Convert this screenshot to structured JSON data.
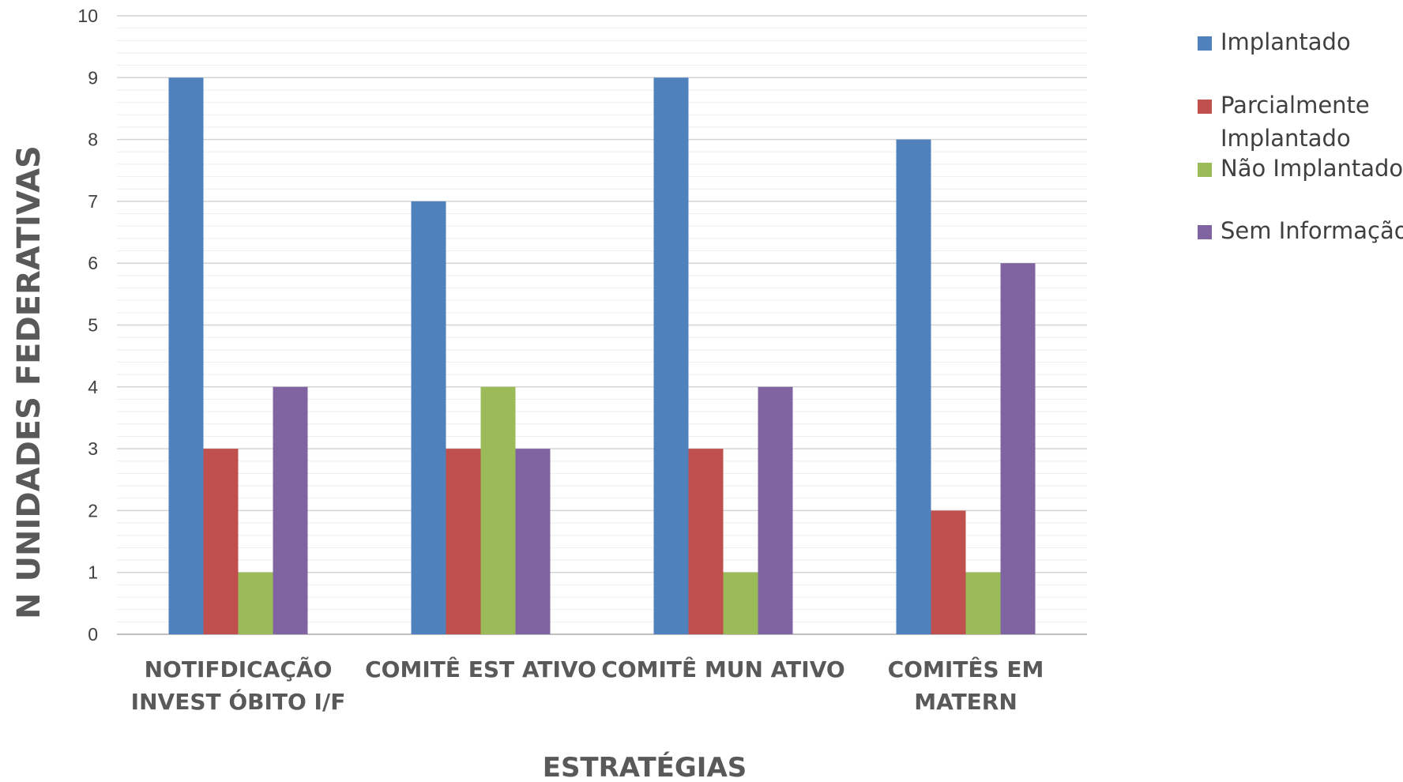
{
  "chart_data": {
    "type": "bar",
    "categories": [
      [
        "NOTIFDICAÇÃO",
        "INVEST ÓBITO I/F"
      ],
      [
        "COMITÊ EST ATIVO"
      ],
      [
        "COMITÊ MUN ATIVO"
      ],
      [
        "COMITÊS EM",
        "MATERN"
      ]
    ],
    "series": [
      {
        "name": "Implantado",
        "legend_lines": [
          "Implantado"
        ],
        "color": "#4F81BD",
        "values": [
          9,
          7,
          9,
          8
        ]
      },
      {
        "name": "Parcialmente Implantado",
        "legend_lines": [
          "Parcialmente",
          "Implantado"
        ],
        "color": "#C0504D",
        "values": [
          3,
          3,
          3,
          2
        ]
      },
      {
        "name": "Não Implantado",
        "legend_lines": [
          "Não Implantado"
        ],
        "color": "#9BBB59",
        "values": [
          1,
          4,
          1,
          1
        ]
      },
      {
        "name": "Sem Informação",
        "legend_lines": [
          "Sem Informação"
        ],
        "color": "#8064A2",
        "values": [
          4,
          3,
          4,
          6
        ]
      }
    ],
    "title": "",
    "xlabel": "ESTRATÉGIAS",
    "ylabel": "N  UNIDADES FEDERATIVAS",
    "ylim": [
      0,
      10
    ],
    "y_ticks": [
      0,
      1,
      2,
      3,
      4,
      5,
      6,
      7,
      8,
      9,
      10
    ],
    "y_minor_step": 0.2,
    "grid": true,
    "legend_position": "right"
  }
}
